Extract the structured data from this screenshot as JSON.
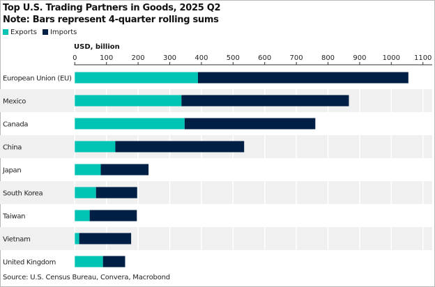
{
  "chart_data": {
    "type": "bar",
    "orientation": "horizontal",
    "stacked": true,
    "title": "Top U.S. Trading Partners in Goods, 2025 Q2",
    "subtitle": "Note: Bars represent 4-quarter rolling sums",
    "xlabel": "USD, billion",
    "xlim": [
      0,
      1100
    ],
    "xticks": [
      0,
      100,
      200,
      300,
      400,
      500,
      600,
      700,
      800,
      900,
      1000,
      1100
    ],
    "grid": true,
    "legend": "top-left",
    "categories": [
      "European Union (EU)",
      "Mexico",
      "Canada",
      "China",
      "Japan",
      "South Korea",
      "Taiwan",
      "Vietnam",
      "United Kingdom"
    ],
    "series": [
      {
        "name": "Exports",
        "color": "#00c4b3",
        "values": [
          389,
          337,
          347,
          128,
          82,
          67,
          47,
          14,
          89
        ]
      },
      {
        "name": "Imports",
        "color": "#001f45",
        "values": [
          665,
          529,
          413,
          407,
          151,
          130,
          149,
          164,
          70
        ]
      }
    ],
    "source": "Source: U.S. Census Bureau, Convera, Macrobond"
  }
}
